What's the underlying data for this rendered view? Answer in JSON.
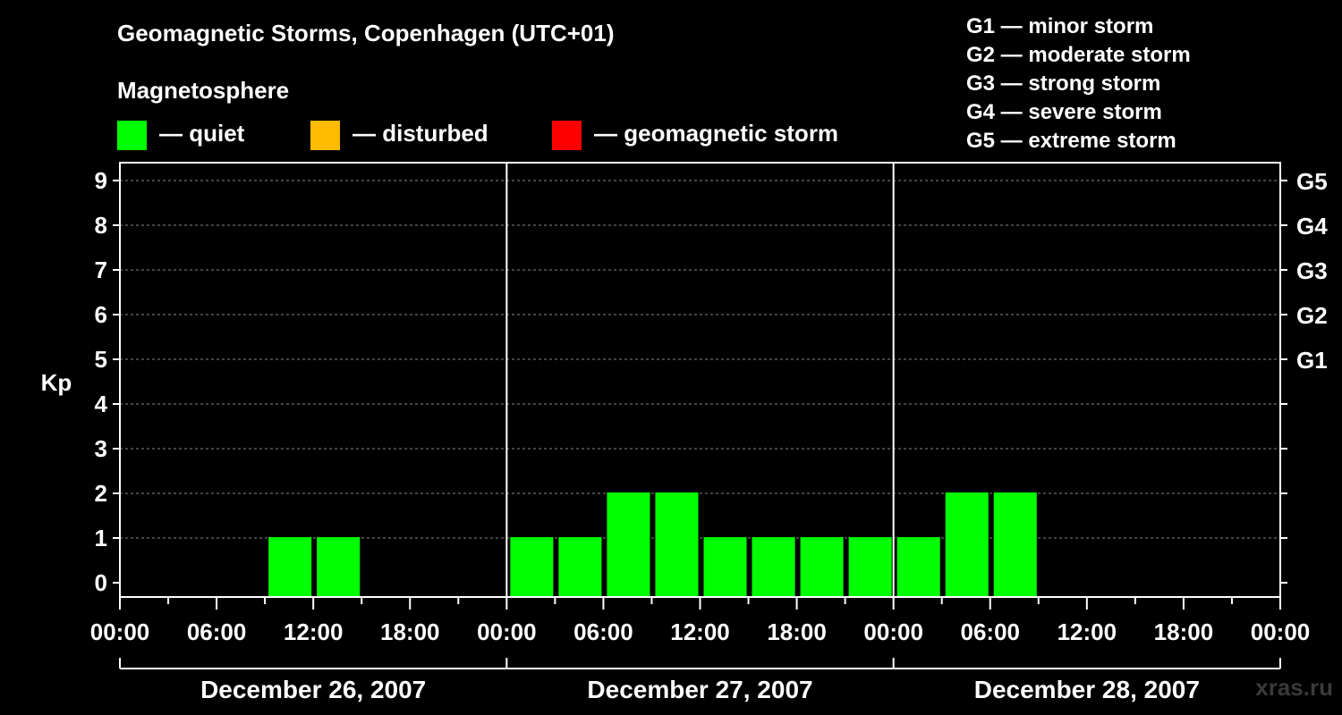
{
  "chart_data": {
    "type": "bar",
    "title": "Geomagnetic Storms, Copenhagen (UTC+01)",
    "ylabel": "Kp",
    "ylim": [
      0,
      9
    ],
    "yticks": [
      0,
      1,
      2,
      3,
      4,
      5,
      6,
      7,
      8,
      9
    ],
    "right_axis_labels": [
      {
        "kp": 5,
        "label": "G1"
      },
      {
        "kp": 6,
        "label": "G2"
      },
      {
        "kp": 7,
        "label": "G3"
      },
      {
        "kp": 8,
        "label": "G4"
      },
      {
        "kp": 9,
        "label": "G5"
      }
    ],
    "x_tick_labels": [
      "00:00",
      "06:00",
      "12:00",
      "18:00",
      "00:00",
      "06:00",
      "12:00",
      "18:00",
      "00:00",
      "06:00",
      "12:00",
      "18:00",
      "00:00"
    ],
    "days": [
      "December 26, 2007",
      "December 27, 2007",
      "December 28, 2007"
    ],
    "interval_hours": 3,
    "values": [
      null,
      null,
      null,
      1,
      1,
      null,
      null,
      null,
      1,
      1,
      2,
      2,
      1,
      1,
      1,
      1,
      1,
      2,
      2,
      null,
      null,
      null,
      null,
      null
    ],
    "legend_title": "Magnetosphere",
    "legend": [
      {
        "label": "— quiet",
        "color": "#00ff00"
      },
      {
        "label": "— disturbed",
        "color": "#ffbb00"
      },
      {
        "label": "— geomagnetic storm",
        "color": "#ff0000"
      }
    ],
    "storm_scale": [
      "G1 — minor storm",
      "G2 — moderate storm",
      "G3 — strong storm",
      "G4 — severe storm",
      "G5 — extreme storm"
    ]
  },
  "watermark": "xras.ru"
}
